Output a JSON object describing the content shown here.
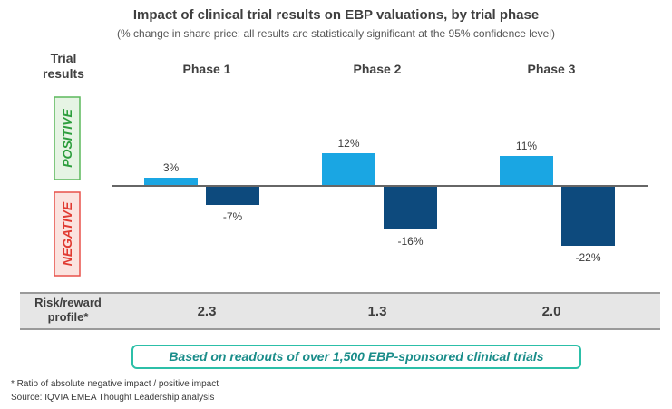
{
  "title": "Impact of clinical trial results on EBP valuations, by trial phase",
  "subtitle": "(% change in share price; all results are statistically significant at the 95% confidence level)",
  "row_header": [
    "Trial",
    "results"
  ],
  "side_labels": {
    "positive": "POSITIVE",
    "negative": "NEGATIVE"
  },
  "colors": {
    "positive": "#1aa6e3",
    "negative": "#0d4a7d",
    "positive_box": "#5cb85c",
    "negative_box": "#e8514a"
  },
  "risk_reward": {
    "label": [
      "Risk/reward",
      "profile*"
    ],
    "values": [
      "2.3",
      "1.3",
      "2.0"
    ]
  },
  "note": "Based on readouts of over 1,500 EBP-sponsored clinical trials",
  "footnote": "* Ratio of absolute negative impact / positive impact",
  "source": "Source: IQVIA EMEA Thought Leadership analysis",
  "chart_data": {
    "type": "bar",
    "categories": [
      "Phase 1",
      "Phase 2",
      "Phase 3"
    ],
    "series": [
      {
        "name": "POSITIVE",
        "values": [
          3,
          12,
          11
        ],
        "labels": [
          "3%",
          "12%",
          "11%"
        ]
      },
      {
        "name": "NEGATIVE",
        "values": [
          -7,
          -16,
          -22
        ],
        "labels": [
          "-7%",
          "-16%",
          "-22%"
        ]
      }
    ],
    "ylabel": "% change in share price",
    "grid": false
  }
}
